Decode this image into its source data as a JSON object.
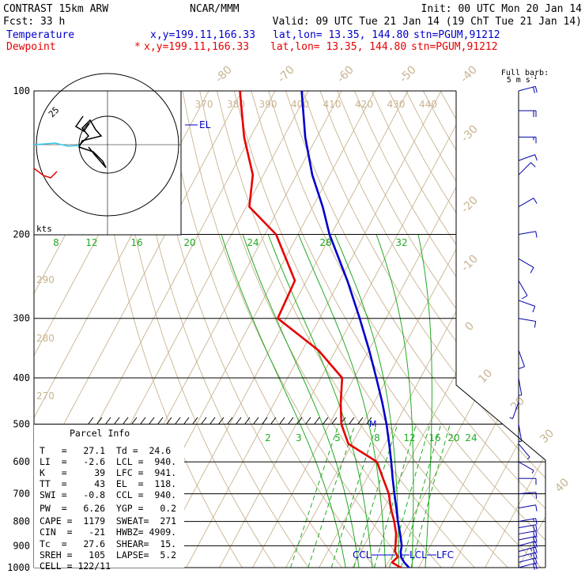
{
  "header": {
    "model": "CONTRAST 15km ARW",
    "fcst": "Fcst:   33 h",
    "center": "NCAR/MMM",
    "init": "Init: 00 UTC Mon 20 Jan 14",
    "valid": "Valid: 09 UTC Tue 21 Jan 14 (19 ChT Tue 21 Jan 14)",
    "temp_label": "Temperature",
    "temp_xy": "x,y=199.11,166.33",
    "temp_latlon": "lat,lon= 13.35, 144.80",
    "temp_stn": "stn=PGUM,91212",
    "dew_label": "Dewpoint",
    "dew_star": "*",
    "dew_xy": "x,y=199.11,166.33",
    "dew_latlon": "lat,lon= 13.35, 144.80",
    "dew_stn": "stn=PGUM,91212"
  },
  "colors": {
    "temperature": "#0000cc",
    "dewpoint": "#e60000",
    "isotherm": "#c8b490",
    "dry_adiabat": "#c8b490",
    "moist_adiabat": "#22aa22",
    "mixing_ratio": "#22aa22",
    "hodo_low": "#33ccee",
    "hodo_mid": "#000000",
    "barb": "#0000aa",
    "grid": "#000000"
  },
  "barb_header": "Full barb:",
  "barb_unit": "5 m s",
  "barb_unit_sup": "-1",
  "hodograph": {
    "ring_label": "25",
    "unit": "kts"
  },
  "parcel_info": {
    "title": "Parcel Info",
    "rows": [
      "T   =   27.1  Td =  24.6",
      "LI  =   -2.6  LCL =  940.",
      "K   =     39  LFC =  941.",
      "TT  =     43  EL  =  118.",
      "SWI =   -0.8  CCL =  940.",
      "PW  =   6.26  YGP =   0.2",
      "CAPE =  1179  SWEAT=  271",
      "CIN  =   -21  HWBZ= 4909.",
      "Tc  =   27.6  SHEAR=  15.",
      "SREH =   105  LAPSE=  5.2",
      "CELL = 122/11"
    ]
  },
  "labels": {
    "el": "EL",
    "ccl": "CCL",
    "lcl": "LCL",
    "lfc": "LFC",
    "melt": "M"
  },
  "chart_data": {
    "type": "line",
    "title": "",
    "xlabel": "",
    "ylabel": "",
    "y_scale": "log",
    "y_ticks": [
      100,
      200,
      300,
      400,
      500,
      600,
      700,
      800,
      900,
      1000
    ],
    "ylim": [
      1000,
      100
    ],
    "isotherm_labels": [
      -80,
      -70,
      -60,
      -50,
      -40,
      -30,
      -20,
      -10,
      0,
      10,
      20,
      30,
      40
    ],
    "theta_labels_top": [
      370,
      380,
      390,
      400,
      410,
      420,
      430,
      440
    ],
    "theta_labels_left": [
      290,
      280,
      270
    ],
    "mixing_ratio_labels": [
      2,
      3,
      5,
      8,
      12,
      16,
      20,
      24
    ],
    "moist_adiabat_labels": [
      8,
      12,
      16,
      20,
      24,
      28,
      32
    ],
    "series": [
      {
        "name": "Temperature",
        "pressure": [
          1000,
          975,
          950,
          925,
          900,
          850,
          800,
          750,
          700,
          650,
          600,
          550,
          500,
          450,
          400,
          350,
          300,
          250,
          200,
          175,
          150,
          125,
          100
        ],
        "values": [
          27.1,
          24.8,
          23.0,
          22.0,
          21.4,
          19.0,
          16.3,
          13.7,
          10.8,
          7.8,
          4.7,
          1.2,
          -2.8,
          -7.6,
          -13.3,
          -19.9,
          -27.9,
          -37.7,
          -50.5,
          -57.0,
          -65.3,
          -73.5,
          -82.0
        ]
      },
      {
        "name": "Dewpoint",
        "pressure": [
          1000,
          975,
          950,
          925,
          900,
          850,
          800,
          750,
          700,
          650,
          600,
          550,
          500,
          450,
          400,
          350,
          300,
          250,
          200,
          175,
          150,
          125,
          100
        ],
        "values": [
          24.6,
          21.1,
          22.0,
          20.3,
          19.5,
          17.8,
          15.2,
          12.0,
          9.1,
          4.9,
          0.4,
          -11.1,
          -16.4,
          -20.1,
          -23.6,
          -35.2,
          -52.6,
          -53.5,
          -66.6,
          -79.1,
          -83.2,
          -91.9,
          -100.6
        ]
      }
    ],
    "wind_barbs": [
      {
        "p": 1000,
        "dir": 75,
        "spd": 20
      },
      {
        "p": 975,
        "dir": 75,
        "spd": 22
      },
      {
        "p": 950,
        "dir": 75,
        "spd": 23
      },
      {
        "p": 925,
        "dir": 75,
        "spd": 23
      },
      {
        "p": 900,
        "dir": 75,
        "spd": 22
      },
      {
        "p": 875,
        "dir": 78,
        "spd": 21
      },
      {
        "p": 850,
        "dir": 80,
        "spd": 20
      },
      {
        "p": 825,
        "dir": 80,
        "spd": 18
      },
      {
        "p": 800,
        "dir": 80,
        "spd": 15
      },
      {
        "p": 750,
        "dir": 80,
        "spd": 12
      },
      {
        "p": 700,
        "dir": 85,
        "spd": 10
      },
      {
        "p": 650,
        "dir": 90,
        "spd": 8
      },
      {
        "p": 600,
        "dir": 120,
        "spd": 5
      },
      {
        "p": 550,
        "dir": 140,
        "spd": 6
      },
      {
        "p": 500,
        "dir": 170,
        "spd": 5
      },
      {
        "p": 450,
        "dir": 200,
        "spd": 4
      },
      {
        "p": 400,
        "dir": 170,
        "spd": 5
      },
      {
        "p": 350,
        "dir": 160,
        "spd": 10
      },
      {
        "p": 300,
        "dir": 100,
        "spd": 10
      },
      {
        "p": 275,
        "dir": 110,
        "spd": 10
      },
      {
        "p": 250,
        "dir": 150,
        "spd": 10
      },
      {
        "p": 225,
        "dir": 120,
        "spd": 11
      },
      {
        "p": 200,
        "dir": 80,
        "spd": 8
      },
      {
        "p": 175,
        "dir": 60,
        "spd": 10
      },
      {
        "p": 150,
        "dir": 45,
        "spd": 10
      },
      {
        "p": 140,
        "dir": 70,
        "spd": 12
      },
      {
        "p": 125,
        "dir": 90,
        "spd": 15
      },
      {
        "p": 110,
        "dir": 90,
        "spd": 20
      },
      {
        "p": 100,
        "dir": 75,
        "spd": 20
      }
    ]
  }
}
